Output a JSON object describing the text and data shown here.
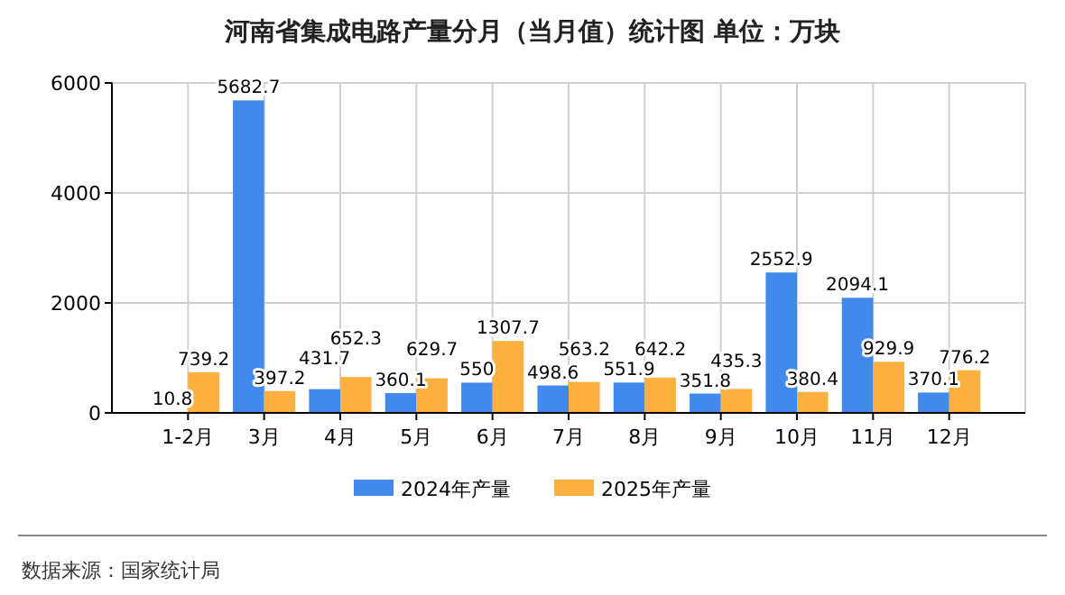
{
  "chart_data": {
    "type": "bar",
    "title": "河南省集成电路产量分月（当月值）统计图 单位：万块",
    "categories": [
      "1-2月",
      "3月",
      "4月",
      "5月",
      "6月",
      "7月",
      "8月",
      "9月",
      "10月",
      "11月",
      "12月"
    ],
    "series": [
      {
        "name": "2024年产量",
        "color": "#4189eb",
        "values": [
          10.8,
          5682.7,
          431.7,
          360.1,
          550,
          498.6,
          551.9,
          351.8,
          2552.9,
          2094.1,
          370.1
        ]
      },
      {
        "name": "2025年产量",
        "color": "#fbb040",
        "values": [
          739.2,
          397.2,
          652.3,
          629.7,
          1307.7,
          563.2,
          642.2,
          435.3,
          380.4,
          929.9,
          776.2
        ]
      }
    ],
    "ylim": [
      0,
      6000
    ],
    "yticks": [
      0,
      2000,
      4000,
      6000
    ],
    "grid": true,
    "legend": "bottom",
    "data_labels": true,
    "annotations": [
      "数据来源：国家统计局"
    ]
  }
}
